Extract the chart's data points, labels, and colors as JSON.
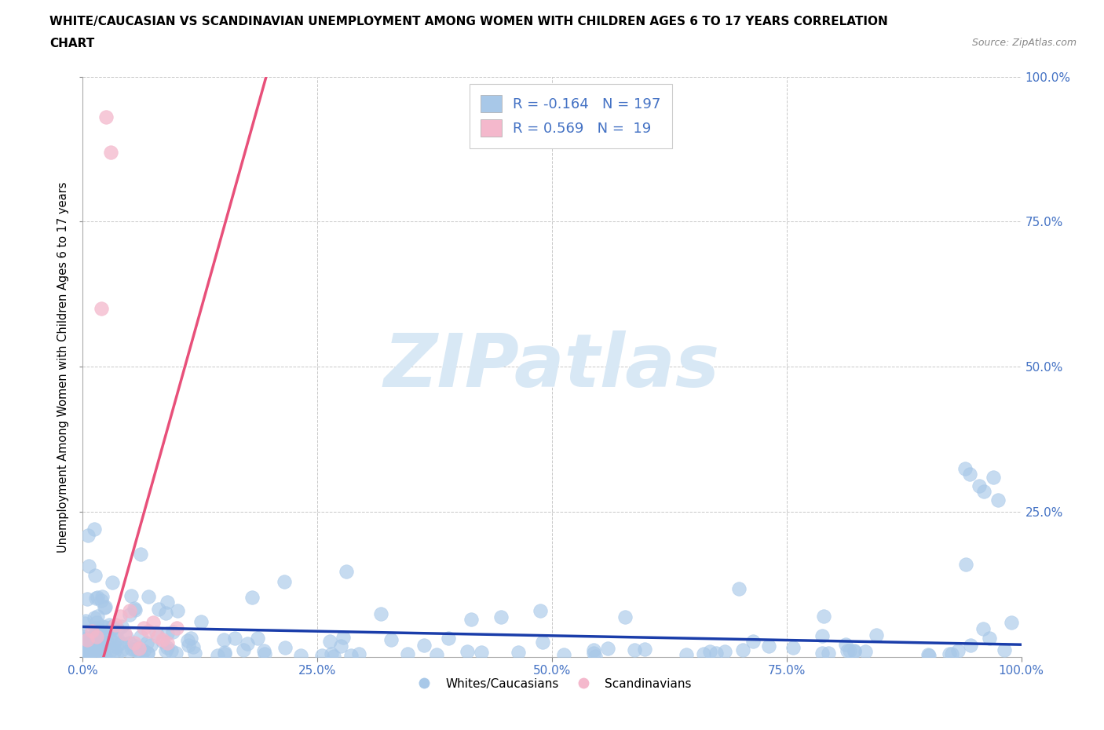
{
  "title_line1": "WHITE/CAUCASIAN VS SCANDINAVIAN UNEMPLOYMENT AMONG WOMEN WITH CHILDREN AGES 6 TO 17 YEARS CORRELATION",
  "title_line2": "CHART",
  "source": "Source: ZipAtlas.com",
  "ylabel": "Unemployment Among Women with Children Ages 6 to 17 years",
  "xlim": [
    0.0,
    1.0
  ],
  "ylim": [
    0.0,
    1.0
  ],
  "xticks": [
    0.0,
    0.25,
    0.5,
    0.75,
    1.0
  ],
  "yticks": [
    0.0,
    0.25,
    0.5,
    0.75,
    1.0
  ],
  "blue_fill": "#A8C8E8",
  "pink_fill": "#F4B8CC",
  "blue_line": "#1A3DAA",
  "pink_line": "#E8507A",
  "blue_R": -0.164,
  "blue_N": 197,
  "pink_R": 0.569,
  "pink_N": 19,
  "watermark": "ZIPatlas",
  "watermark_color": "#D8E8F5",
  "legend_label_blue": "Whites/Caucasians",
  "legend_label_pink": "Scandinavians",
  "axis_color": "#4472C4",
  "title_fontsize": 11,
  "axis_tick_fontsize": 11
}
